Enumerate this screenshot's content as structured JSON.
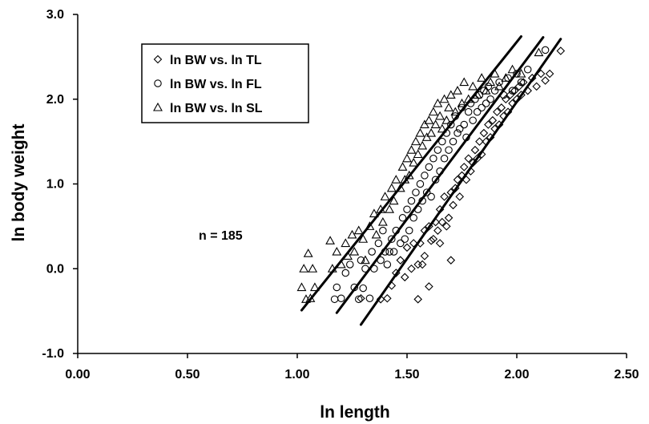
{
  "chart_data": {
    "type": "scatter",
    "title": "",
    "xlabel": "ln length",
    "ylabel": "ln body weight",
    "xlim": [
      0.0,
      2.5
    ],
    "ylim": [
      -1.0,
      3.0
    ],
    "xticks": [
      "0.00",
      "0.50",
      "1.00",
      "1.50",
      "2.00",
      "2.50"
    ],
    "yticks": [
      "-1.0",
      "0.0",
      "1.0",
      "2.0",
      "3.0"
    ],
    "grid": false,
    "legend_position": "top-left",
    "annotation": "n = 185",
    "series": [
      {
        "name": "ln BW vs. ln TL",
        "marker": "diamond",
        "points": [
          [
            1.29,
            -0.35
          ],
          [
            1.38,
            -0.36
          ],
          [
            1.41,
            -0.35
          ],
          [
            1.43,
            -0.2
          ],
          [
            1.45,
            -0.05
          ],
          [
            1.47,
            0.1
          ],
          [
            1.49,
            -0.1
          ],
          [
            1.5,
            0.25
          ],
          [
            1.52,
            0.0
          ],
          [
            1.53,
            0.3
          ],
          [
            1.55,
            -0.36
          ],
          [
            1.55,
            0.05
          ],
          [
            1.56,
            0.3
          ],
          [
            1.57,
            0.05
          ],
          [
            1.58,
            0.45
          ],
          [
            1.58,
            0.15
          ],
          [
            1.6,
            -0.21
          ],
          [
            1.6,
            0.5
          ],
          [
            1.61,
            0.33
          ],
          [
            1.62,
            0.35
          ],
          [
            1.63,
            0.55
          ],
          [
            1.64,
            0.45
          ],
          [
            1.65,
            0.7
          ],
          [
            1.65,
            0.3
          ],
          [
            1.66,
            0.55
          ],
          [
            1.67,
            0.85
          ],
          [
            1.68,
            0.5
          ],
          [
            1.69,
            0.6
          ],
          [
            1.7,
            0.1
          ],
          [
            1.7,
            0.9
          ],
          [
            1.71,
            0.75
          ],
          [
            1.72,
            0.95
          ],
          [
            1.73,
            1.05
          ],
          [
            1.74,
            0.85
          ],
          [
            1.75,
            1.1
          ],
          [
            1.76,
            1.2
          ],
          [
            1.77,
            1.05
          ],
          [
            1.78,
            1.3
          ],
          [
            1.79,
            1.15
          ],
          [
            1.8,
            1.25
          ],
          [
            1.81,
            1.4
          ],
          [
            1.82,
            1.3
          ],
          [
            1.83,
            1.5
          ],
          [
            1.84,
            1.35
          ],
          [
            1.85,
            1.6
          ],
          [
            1.86,
            1.5
          ],
          [
            1.87,
            1.7
          ],
          [
            1.88,
            1.55
          ],
          [
            1.89,
            1.75
          ],
          [
            1.9,
            1.65
          ],
          [
            1.91,
            1.85
          ],
          [
            1.92,
            1.7
          ],
          [
            1.93,
            1.9
          ],
          [
            1.94,
            1.8
          ],
          [
            1.95,
            2.0
          ],
          [
            1.96,
            1.85
          ],
          [
            1.97,
            2.05
          ],
          [
            1.98,
            1.95
          ],
          [
            1.99,
            2.1
          ],
          [
            2.0,
            2.0
          ],
          [
            2.01,
            2.15
          ],
          [
            2.02,
            2.05
          ],
          [
            2.03,
            2.2
          ],
          [
            2.05,
            2.1
          ],
          [
            2.07,
            2.25
          ],
          [
            2.09,
            2.15
          ],
          [
            2.11,
            2.3
          ],
          [
            2.13,
            2.22
          ],
          [
            2.15,
            2.3
          ],
          [
            2.2,
            2.57
          ]
        ]
      },
      {
        "name": "ln BW vs. ln FL",
        "marker": "circle",
        "points": [
          [
            1.17,
            -0.36
          ],
          [
            1.18,
            -0.22
          ],
          [
            1.2,
            -0.35
          ],
          [
            1.22,
            -0.05
          ],
          [
            1.24,
            0.05
          ],
          [
            1.26,
            -0.22
          ],
          [
            1.28,
            -0.36
          ],
          [
            1.29,
            0.1
          ],
          [
            1.3,
            -0.23
          ],
          [
            1.31,
            0.0
          ],
          [
            1.33,
            -0.35
          ],
          [
            1.34,
            0.2
          ],
          [
            1.35,
            0.0
          ],
          [
            1.37,
            0.3
          ],
          [
            1.38,
            0.1
          ],
          [
            1.39,
            0.45
          ],
          [
            1.4,
            0.2
          ],
          [
            1.41,
            0.05
          ],
          [
            1.42,
            0.2
          ],
          [
            1.43,
            0.35
          ],
          [
            1.44,
            0.2
          ],
          [
            1.45,
            0.45
          ],
          [
            1.47,
            0.3
          ],
          [
            1.48,
            0.6
          ],
          [
            1.49,
            0.35
          ],
          [
            1.5,
            0.7
          ],
          [
            1.51,
            0.45
          ],
          [
            1.52,
            0.8
          ],
          [
            1.53,
            0.6
          ],
          [
            1.54,
            0.9
          ],
          [
            1.55,
            0.7
          ],
          [
            1.56,
            1.0
          ],
          [
            1.57,
            0.8
          ],
          [
            1.58,
            1.1
          ],
          [
            1.59,
            0.9
          ],
          [
            1.6,
            1.2
          ],
          [
            1.61,
            0.85
          ],
          [
            1.62,
            1.3
          ],
          [
            1.63,
            1.05
          ],
          [
            1.64,
            1.4
          ],
          [
            1.65,
            1.15
          ],
          [
            1.66,
            1.5
          ],
          [
            1.67,
            1.3
          ],
          [
            1.68,
            1.6
          ],
          [
            1.69,
            1.4
          ],
          [
            1.7,
            1.7
          ],
          [
            1.71,
            1.5
          ],
          [
            1.72,
            1.8
          ],
          [
            1.73,
            1.6
          ],
          [
            1.74,
            1.65
          ],
          [
            1.75,
            1.9
          ],
          [
            1.76,
            1.7
          ],
          [
            1.77,
            1.55
          ],
          [
            1.78,
            1.85
          ],
          [
            1.79,
            1.95
          ],
          [
            1.8,
            1.75
          ],
          [
            1.81,
            2.0
          ],
          [
            1.82,
            1.85
          ],
          [
            1.83,
            2.05
          ],
          [
            1.84,
            1.9
          ],
          [
            1.85,
            2.1
          ],
          [
            1.86,
            1.95
          ],
          [
            1.87,
            2.15
          ],
          [
            1.88,
            2.0
          ],
          [
            1.9,
            2.1
          ],
          [
            1.92,
            2.2
          ],
          [
            1.94,
            2.05
          ],
          [
            1.96,
            2.25
          ],
          [
            1.98,
            2.1
          ],
          [
            2.0,
            2.3
          ],
          [
            2.02,
            2.2
          ],
          [
            2.05,
            2.35
          ],
          [
            2.13,
            2.58
          ]
        ]
      },
      {
        "name": "ln BW vs. ln SL",
        "marker": "triangle",
        "points": [
          [
            1.02,
            -0.22
          ],
          [
            1.03,
            0.0
          ],
          [
            1.04,
            -0.36
          ],
          [
            1.05,
            0.18
          ],
          [
            1.06,
            -0.35
          ],
          [
            1.07,
            0.0
          ],
          [
            1.08,
            -0.22
          ],
          [
            1.15,
            0.33
          ],
          [
            1.16,
            0.0
          ],
          [
            1.18,
            0.2
          ],
          [
            1.2,
            0.05
          ],
          [
            1.22,
            0.3
          ],
          [
            1.23,
            0.15
          ],
          [
            1.25,
            0.4
          ],
          [
            1.26,
            0.2
          ],
          [
            1.28,
            0.45
          ],
          [
            1.3,
            0.35
          ],
          [
            1.31,
            0.1
          ],
          [
            1.33,
            0.5
          ],
          [
            1.35,
            0.65
          ],
          [
            1.36,
            0.4
          ],
          [
            1.38,
            0.7
          ],
          [
            1.39,
            0.55
          ],
          [
            1.4,
            0.85
          ],
          [
            1.42,
            0.7
          ],
          [
            1.43,
            0.95
          ],
          [
            1.44,
            0.8
          ],
          [
            1.45,
            1.05
          ],
          [
            1.47,
            0.95
          ],
          [
            1.48,
            1.2
          ],
          [
            1.49,
            1.05
          ],
          [
            1.5,
            1.3
          ],
          [
            1.51,
            1.1
          ],
          [
            1.52,
            1.4
          ],
          [
            1.53,
            1.25
          ],
          [
            1.54,
            1.5
          ],
          [
            1.55,
            1.35
          ],
          [
            1.56,
            1.6
          ],
          [
            1.57,
            1.45
          ],
          [
            1.58,
            1.7
          ],
          [
            1.59,
            1.55
          ],
          [
            1.6,
            1.75
          ],
          [
            1.61,
            1.6
          ],
          [
            1.62,
            1.85
          ],
          [
            1.63,
            1.7
          ],
          [
            1.64,
            1.95
          ],
          [
            1.65,
            1.8
          ],
          [
            1.66,
            1.65
          ],
          [
            1.67,
            2.0
          ],
          [
            1.68,
            1.75
          ],
          [
            1.69,
            1.9
          ],
          [
            1.7,
            2.05
          ],
          [
            1.72,
            1.85
          ],
          [
            1.73,
            2.1
          ],
          [
            1.75,
            1.95
          ],
          [
            1.76,
            2.2
          ],
          [
            1.78,
            2.0
          ],
          [
            1.8,
            2.15
          ],
          [
            1.82,
            2.05
          ],
          [
            1.84,
            2.25
          ],
          [
            1.86,
            2.1
          ],
          [
            1.88,
            2.2
          ],
          [
            1.9,
            2.3
          ],
          [
            1.92,
            2.15
          ],
          [
            1.95,
            2.25
          ],
          [
            1.98,
            2.35
          ],
          [
            2.02,
            2.3
          ],
          [
            2.1,
            2.55
          ]
        ]
      }
    ],
    "fit_lines": [
      {
        "x1": 1.02,
        "y1": -0.49,
        "x2": 2.02,
        "y2": 2.74
      },
      {
        "x1": 1.18,
        "y1": -0.52,
        "x2": 2.12,
        "y2": 2.73
      },
      {
        "x1": 1.29,
        "y1": -0.66,
        "x2": 2.2,
        "y2": 2.71
      }
    ]
  }
}
